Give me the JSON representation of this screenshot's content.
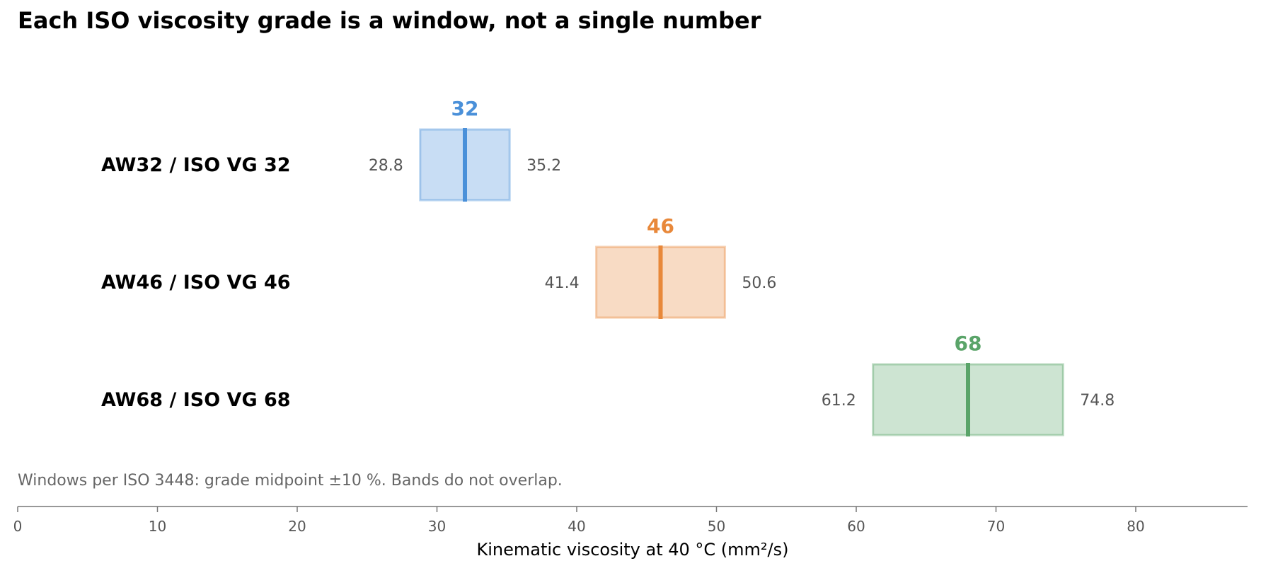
{
  "title": "Each ISO viscosity grade is a window, not a single number",
  "note": "Windows per ISO 3448: grade midpoint ±10 %. Bands do not overlap.",
  "chart_data": {
    "type": "range-band",
    "title": "Each ISO viscosity grade is a window, not a single number",
    "xlabel": "Kinematic viscosity at 40 °C  (mm²/s)",
    "xlim": [
      0,
      88
    ],
    "xticks": [
      0,
      10,
      20,
      30,
      40,
      50,
      60,
      70,
      80
    ],
    "grid": false,
    "series": [
      {
        "name": "AW32 / ISO VG 32",
        "low": 28.8,
        "mid": 32,
        "high": 35.2,
        "mid_label": "32",
        "low_label": "28.8",
        "high_label": "35.2",
        "color": "#4a90d9"
      },
      {
        "name": "AW46 / ISO VG 46",
        "low": 41.4,
        "mid": 46,
        "high": 50.6,
        "mid_label": "46",
        "low_label": "41.4",
        "high_label": "50.6",
        "color": "#e8883a"
      },
      {
        "name": "AW68 / ISO VG 68",
        "low": 61.2,
        "mid": 68,
        "high": 74.8,
        "mid_label": "68",
        "low_label": "61.2",
        "high_label": "74.8",
        "color": "#5aa469"
      }
    ]
  }
}
